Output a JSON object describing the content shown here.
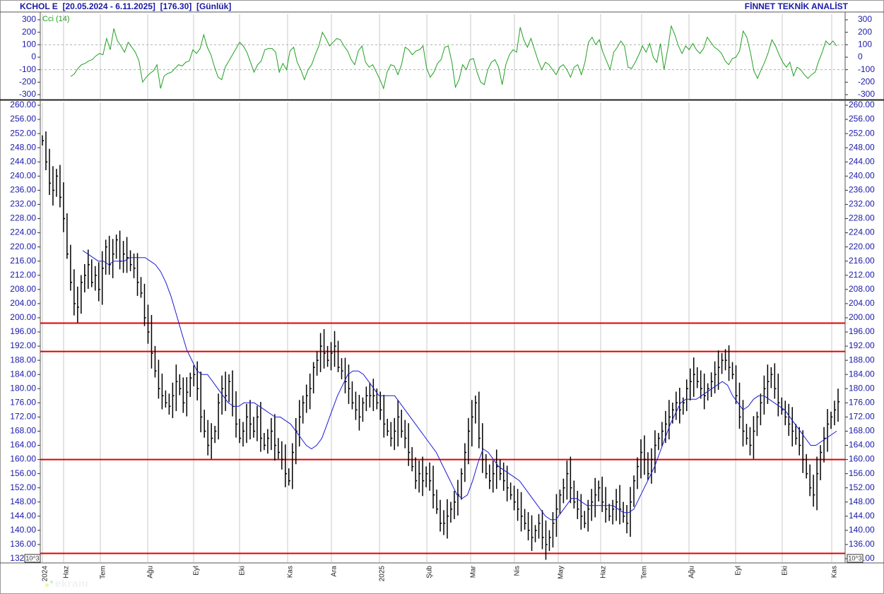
{
  "header": {
    "symbol": "KCHOL E",
    "range": "[20.05.2024 - 6.11.2025]",
    "last": "[176.30]",
    "period": "[Günlük]",
    "vendor": "FİNNET TEKNİK ANALİST"
  },
  "watermark": {
    "text": "ekranı"
  },
  "colors": {
    "price_bars": "#000000",
    "moving_average": "#1a1ad6",
    "cci_line": "#22a022",
    "levels": "#e00000",
    "grid": "#c8c8c8",
    "label_text": "#1a1aa8"
  },
  "chart_data": [
    {
      "type": "line",
      "indicator": "CCI",
      "legend": "Cci (14)",
      "ylim": [
        -300,
        300
      ],
      "yticks": [
        300,
        200,
        100,
        0,
        -100,
        -200,
        -300
      ],
      "ytick_labels": [
        "300",
        "200",
        "100",
        "0",
        "-100",
        "-200",
        "-300"
      ],
      "grid_y": [
        100,
        -100
      ],
      "values": [
        -155,
        -135,
        -90,
        -60,
        -50,
        -30,
        -20,
        10,
        30,
        20,
        150,
        60,
        230,
        130,
        90,
        40,
        120,
        80,
        40,
        -30,
        -200,
        -160,
        -130,
        -110,
        -60,
        -250,
        -150,
        -130,
        -120,
        -90,
        -60,
        -70,
        -40,
        -30,
        60,
        30,
        70,
        180,
        80,
        20,
        -80,
        -160,
        -180,
        -80,
        -30,
        20,
        70,
        120,
        90,
        40,
        -40,
        -120,
        -60,
        -30,
        60,
        70,
        70,
        40,
        -120,
        -50,
        -100,
        50,
        80,
        -40,
        -100,
        -180,
        -100,
        -60,
        20,
        90,
        200,
        150,
        90,
        120,
        150,
        140,
        90,
        50,
        -20,
        -60,
        50,
        90,
        -40,
        -80,
        -60,
        -120,
        -180,
        -250,
        -120,
        -60,
        -70,
        -140,
        -60,
        80,
        60,
        20,
        50,
        60,
        90,
        -90,
        -160,
        -120,
        -50,
        -20,
        80,
        90,
        -40,
        -240,
        -180,
        -60,
        -100,
        -20,
        -10,
        -120,
        -200,
        -220,
        -100,
        -40,
        -20,
        -80,
        -220,
        -60,
        20,
        60,
        40,
        240,
        140,
        80,
        150,
        60,
        -30,
        -100,
        -40,
        -60,
        -100,
        -140,
        -80,
        -60,
        -100,
        -160,
        -80,
        -60,
        -140,
        -40,
        120,
        160,
        100,
        140,
        40,
        -30,
        -100,
        40,
        80,
        130,
        90,
        -80,
        -90,
        -40,
        20,
        90,
        40,
        110,
        0,
        -40,
        110,
        -100,
        60,
        250,
        180,
        90,
        30,
        90,
        60,
        110,
        60,
        30,
        70,
        160,
        120,
        80,
        60,
        30,
        -30,
        -60,
        -10,
        0,
        50,
        210,
        160,
        40,
        -110,
        -170,
        -100,
        -40,
        40,
        140,
        90,
        20,
        -40,
        -80,
        -40,
        -150,
        -80,
        -100,
        -140,
        -170,
        -140,
        -120,
        -30,
        40,
        130,
        100,
        130,
        90
      ]
    },
    {
      "type": "bar",
      "subtype": "ohlc",
      "ylim": [
        132,
        260
      ],
      "yticks": [
        260,
        256,
        252,
        248,
        244,
        240,
        236,
        232,
        228,
        224,
        220,
        216,
        212,
        208,
        204,
        200,
        196,
        192,
        188,
        184,
        180,
        176,
        172,
        168,
        164,
        160,
        156,
        152,
        148,
        144,
        140,
        136,
        132
      ],
      "ytick_labels": [
        "260.00",
        "256.00",
        "252.00",
        "248.00",
        "244.00",
        "240.00",
        "236.00",
        "232.00",
        "228.00",
        "224.00",
        "220.00",
        "216.00",
        "212.00",
        "208.00",
        "204.00",
        "200.00",
        "196.00",
        "192.00",
        "188.00",
        "184.00",
        "180.00",
        "176.00",
        "172.00",
        "168.00",
        "164.00",
        "160.00",
        "156.00",
        "152.00",
        "148.00",
        "144.00",
        "140.00",
        "136.00",
        "132.00"
      ],
      "axis_multiplier": "10^3",
      "x_labels": [
        "2024",
        "Haz",
        "Tem",
        "Ağu",
        "Eyl",
        "Eki",
        "Kas",
        "Ara",
        "2025",
        "Şub",
        "Mar",
        "Nis",
        "May",
        "Haz",
        "Tem",
        "Ağu",
        "Eyl",
        "Eki",
        "Kas"
      ],
      "horizontal_levels": [
        198.5,
        190.5,
        160,
        133.5
      ],
      "close": [
        250,
        244,
        238,
        236,
        240,
        234,
        228,
        218,
        210,
        204,
        203,
        210,
        212,
        215,
        210,
        212,
        208,
        214,
        220,
        215,
        218,
        222,
        216,
        218,
        217,
        215,
        214,
        210,
        207,
        200,
        196,
        190,
        185,
        180,
        178,
        176,
        175,
        178,
        182,
        180,
        176,
        179,
        183,
        184,
        180,
        172,
        168,
        164,
        166,
        168,
        176,
        180,
        178,
        182,
        175,
        170,
        166,
        168,
        172,
        170,
        168,
        172,
        166,
        164,
        166,
        168,
        164,
        162,
        160,
        156,
        154,
        162,
        168,
        172,
        176,
        178,
        180,
        186,
        188,
        192,
        190,
        188,
        190,
        192,
        186,
        185,
        182,
        180,
        176,
        174,
        172,
        176,
        178,
        178,
        178,
        176,
        174,
        170,
        168,
        166,
        168,
        172,
        168,
        166,
        162,
        158,
        154,
        156,
        154,
        156,
        154,
        150,
        146,
        142,
        142,
        144,
        146,
        148,
        150,
        156,
        162,
        168,
        172,
        176,
        166,
        160,
        156,
        154,
        156,
        158,
        156,
        154,
        152,
        150,
        148,
        146,
        144,
        142,
        140,
        138,
        140,
        142,
        138,
        136,
        138,
        142,
        146,
        150,
        152,
        156,
        152,
        148,
        146,
        144,
        142,
        146,
        148,
        150,
        152,
        148,
        146,
        144,
        146,
        148,
        146,
        144,
        142,
        148,
        154,
        158,
        162,
        160,
        156,
        160,
        164,
        166,
        168,
        170,
        172,
        174,
        176,
        174,
        176,
        180,
        182,
        184,
        182,
        180,
        178,
        180,
        182,
        184,
        186,
        188,
        188,
        186,
        184,
        178,
        172,
        168,
        166,
        164,
        168,
        172,
        176,
        180,
        182,
        184,
        180,
        176,
        174,
        172,
        170,
        168,
        166,
        164,
        160,
        156,
        152,
        150,
        156,
        162,
        166,
        170,
        172,
        174,
        176.3
      ],
      "moving_average": [
        219,
        218,
        217,
        216,
        216,
        215,
        216,
        216,
        216,
        217,
        217,
        217,
        217,
        216,
        215,
        213,
        210,
        206,
        201,
        196,
        191,
        188,
        185,
        184,
        184,
        182,
        180,
        178,
        176,
        175,
        175,
        176,
        176,
        176,
        175,
        174,
        173,
        172,
        172,
        171,
        170,
        168,
        166,
        164,
        163,
        164,
        166,
        170,
        174,
        178,
        181,
        184,
        185,
        185,
        184,
        182,
        180,
        178,
        178,
        178,
        178,
        176,
        174,
        172,
        170,
        168,
        166,
        164,
        162,
        159,
        156,
        153,
        150,
        149,
        150,
        154,
        159,
        163,
        162,
        160,
        158,
        157,
        156,
        155,
        154,
        152,
        150,
        148,
        146,
        144,
        143,
        143,
        145,
        147,
        149,
        149,
        148,
        147,
        147,
        147,
        147,
        147,
        147,
        146,
        145,
        145,
        146,
        149,
        152,
        155,
        158,
        162,
        166,
        170,
        173,
        176,
        177,
        177,
        177,
        178,
        179,
        180,
        181,
        182,
        181,
        178,
        176,
        174,
        175,
        177,
        178,
        178,
        177,
        176,
        175,
        174,
        172,
        170,
        168,
        166,
        164,
        164,
        165,
        166,
        167,
        168
      ]
    }
  ]
}
